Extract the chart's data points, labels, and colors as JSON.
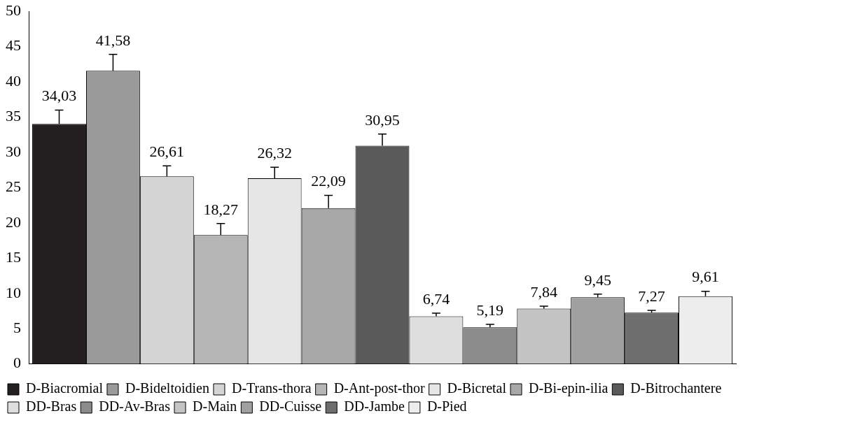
{
  "chart_data": {
    "type": "bar",
    "categories": [
      null
    ],
    "series": [
      {
        "name": "D-Biacromial",
        "color": "#231f20",
        "values": [
          34.03
        ],
        "value_labels": [
          "34,03"
        ],
        "errors": [
          [
            34.03,
            36.0
          ]
        ]
      },
      {
        "name": "D-Bideltoidien",
        "color": "#9a9a9a",
        "values": [
          41.58
        ],
        "value_labels": [
          "41,58"
        ],
        "errors": [
          [
            41.58,
            43.9
          ]
        ]
      },
      {
        "name": "D-Trans-thora",
        "color": "#d4d4d4",
        "values": [
          26.61
        ],
        "value_labels": [
          "26,61"
        ],
        "errors": [
          [
            26.61,
            28.1
          ]
        ]
      },
      {
        "name": "D-Ant-post-thor",
        "color": "#b5b5b5",
        "values": [
          18.27
        ],
        "value_labels": [
          "18,27"
        ],
        "errors": [
          [
            18.27,
            19.9
          ]
        ]
      },
      {
        "name": "D-Bicretal",
        "color": "#e6e6e6",
        "values": [
          26.32
        ],
        "value_labels": [
          "26,32"
        ],
        "errors": [
          [
            26.32,
            27.9
          ]
        ]
      },
      {
        "name": "D-Bi-epin-ilia",
        "color": "#a8a8a8",
        "values": [
          22.09
        ],
        "value_labels": [
          "22,09"
        ],
        "errors": [
          [
            22.09,
            23.9
          ]
        ]
      },
      {
        "name": "D-Bitrochantere",
        "color": "#5a5a5a",
        "values": [
          30.95
        ],
        "value_labels": [
          "30,95"
        ],
        "errors": [
          [
            30.95,
            32.6
          ]
        ]
      },
      {
        "name": "DD-Bras",
        "color": "#dedede",
        "values": [
          6.74
        ],
        "value_labels": [
          "6,74"
        ],
        "errors": [
          [
            6.74,
            7.2
          ]
        ]
      },
      {
        "name": "DD-Av-Bras",
        "color": "#8c8c8c",
        "values": [
          5.19
        ],
        "value_labels": [
          "5,19"
        ],
        "errors": [
          [
            5.19,
            5.6
          ]
        ]
      },
      {
        "name": "D-Main",
        "color": "#c4c4c4",
        "values": [
          7.84
        ],
        "value_labels": [
          "7,84"
        ],
        "errors": [
          [
            7.84,
            8.2
          ]
        ]
      },
      {
        "name": "DD-Cuisse",
        "color": "#a0a0a0",
        "values": [
          9.45
        ],
        "value_labels": [
          "9,45"
        ],
        "errors": [
          [
            9.45,
            9.9
          ]
        ]
      },
      {
        "name": "DD-Jambe",
        "color": "#6e6e6e",
        "values": [
          7.27
        ],
        "value_labels": [
          "7,27"
        ],
        "errors": [
          [
            7.27,
            7.6
          ]
        ]
      },
      {
        "name": "D-Pied",
        "color": "#ededed",
        "values": [
          9.61
        ],
        "value_labels": [
          "9,61"
        ],
        "errors": [
          [
            9.61,
            10.3
          ]
        ]
      }
    ],
    "ylim": [
      0,
      50
    ],
    "yticks": [
      0,
      5,
      10,
      15,
      20,
      25,
      30,
      35,
      40,
      45,
      50
    ],
    "legend": "bottom"
  }
}
